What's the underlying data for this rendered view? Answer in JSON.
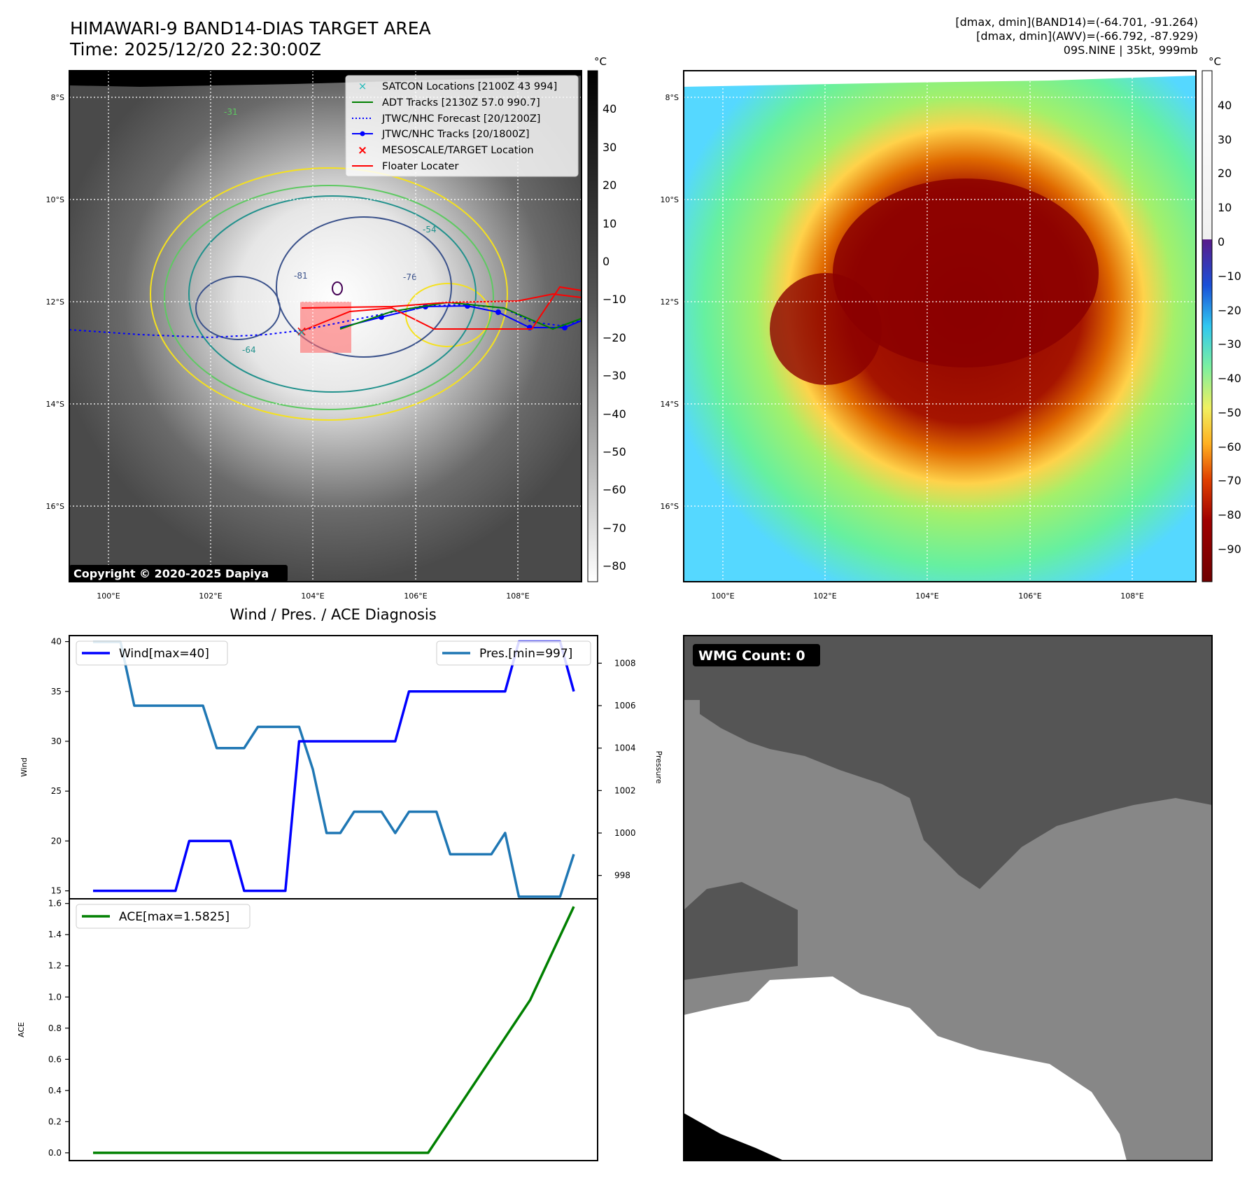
{
  "header": {
    "title_line1": "HIMAWARI-9 BAND14-DIAS TARGET AREA",
    "title_line2": "Time: 2025/12/20 22:30:00Z",
    "info_line1": "[dmax, dmin](BAND14)=(-64.701, -91.264)",
    "info_line2": "[dmax, dmin](AWV)=(-66.792, -87.929)",
    "info_line3": "09S.NINE | 35kt, 999mb"
  },
  "map": {
    "lat_labels": [
      "8°S",
      "10°S",
      "12°S",
      "14°S",
      "16°S"
    ],
    "lon_labels": [
      "100°E",
      "102°E",
      "104°E",
      "106°E",
      "108°E"
    ],
    "copyright": "Copyright © 2020-2025 Dapiya",
    "contour_labels": [
      "-31",
      "-54",
      "-76",
      "-81",
      "-64"
    ],
    "legend": [
      {
        "label": "SATCON Locations [2100Z 43 994]",
        "color": "#1fb9b9",
        "marker": "x"
      },
      {
        "label": "ADT Tracks [2130Z 57.0 990.7]",
        "color": "#008000",
        "marker": "line"
      },
      {
        "label": "JTWC/NHC Forecast [20/1200Z]",
        "color": "#0000ff",
        "marker": "dotted"
      },
      {
        "label": "JTWC/NHC Tracks [20/1800Z]",
        "color": "#0000ff",
        "marker": "line-dot"
      },
      {
        "label": "MESOSCALE/TARGET Location",
        "color": "#ff0000",
        "marker": "x"
      },
      {
        "label": "Floater Locater",
        "color": "#ff0000",
        "marker": "line"
      }
    ]
  },
  "colorbar_gray": {
    "unit": "°C",
    "ticks": [
      "40",
      "30",
      "20",
      "10",
      "0",
      "−10",
      "−20",
      "−30",
      "−40",
      "−50",
      "−60",
      "−70",
      "−80"
    ]
  },
  "colorbar_color": {
    "unit": "°C",
    "ticks": [
      "40",
      "30",
      "20",
      "10",
      "0",
      "−10",
      "−20",
      "−30",
      "−40",
      "−50",
      "−60",
      "−70",
      "−80",
      "−90"
    ]
  },
  "wmg": {
    "label": "WMG Count: 0"
  },
  "colors": {
    "wind": "#0000ff",
    "pressure": "#1f77b4",
    "ace": "#008000",
    "contour_yellow": "#f5e11e",
    "contour_green": "#5ec962",
    "contour_teal": "#21918c",
    "contour_navy": "#3b528b"
  },
  "chart_data": [
    {
      "type": "line",
      "title": "Wind / Pres. / ACE Diagnosis",
      "ylabel": "Wind",
      "ylabel_right": "Pressure",
      "ylim": [
        14.2,
        40.6
      ],
      "ylim_right": [
        996.9,
        1009.3
      ],
      "yticks": [
        15,
        20,
        25,
        30,
        35,
        40
      ],
      "yticks_right": [
        998,
        1000,
        1002,
        1004,
        1006,
        1008
      ],
      "series": [
        {
          "name": "Wind[max=40]",
          "axis": "left",
          "values": [
            15,
            15,
            15,
            15,
            15,
            15,
            15,
            20,
            20,
            20,
            20,
            15,
            15,
            15,
            15,
            30,
            30,
            30,
            30,
            30,
            30,
            30,
            30,
            35,
            35,
            35,
            35,
            35,
            35,
            35,
            35,
            40,
            40,
            40,
            40,
            35
          ]
        },
        {
          "name": "Pres.[min=997]",
          "axis": "right",
          "values": [
            1009,
            1009,
            1009,
            1006,
            1006,
            1006,
            1006,
            1006,
            1006,
            1004,
            1004,
            1004,
            1005,
            1005,
            1005,
            1005,
            1003,
            1000,
            1000,
            1001,
            1001,
            1001,
            1000,
            1001,
            1001,
            1001,
            999,
            999,
            999,
            999,
            1000,
            997,
            997,
            997,
            997,
            999
          ]
        }
      ]
    },
    {
      "type": "line",
      "title": "",
      "ylabel": "ACE",
      "ylim": [
        -0.05,
        1.63
      ],
      "yticks": [
        0.0,
        0.2,
        0.4,
        0.6,
        0.8,
        1.0,
        1.2,
        1.4,
        1.6
      ],
      "series": [
        {
          "name": "ACE[max=1.5825]",
          "values": [
            0,
            0,
            0,
            0,
            0,
            0,
            0,
            0,
            0,
            0,
            0,
            0,
            0,
            0,
            0,
            0,
            0,
            0,
            0,
            0,
            0,
            0,
            0,
            0,
            0.14,
            0.28,
            0.42,
            0.56,
            0.7,
            0.84,
            0.98,
            1.18,
            1.38,
            1.58
          ]
        }
      ]
    }
  ]
}
